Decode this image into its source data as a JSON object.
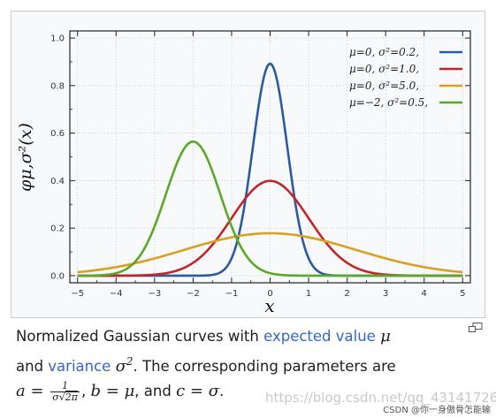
{
  "chart_data": {
    "type": "line",
    "x_axis_label": "x",
    "y_axis_label": "φμ,σ²(x)",
    "xlim": [
      -5,
      5
    ],
    "ylim": [
      0,
      1.0
    ],
    "x_ticks": [
      -5,
      -4,
      -3,
      -2,
      -1,
      0,
      1,
      2,
      3,
      4,
      5
    ],
    "x_tick_labels": [
      "−5",
      "−4",
      "−3",
      "−2",
      "−1",
      "0",
      "1",
      "2",
      "3",
      "4",
      "5"
    ],
    "y_ticks": [
      0,
      0.2,
      0.4,
      0.6,
      0.8,
      1.0
    ],
    "y_tick_labels": [
      "0.0",
      "0.2",
      "0.4",
      "0.6",
      "0.8",
      "1.0"
    ],
    "grid": true,
    "legend_position": "top-right",
    "series": [
      {
        "name": "μ=0,   σ²=0.2,",
        "mu": 0,
        "sigma2": 0.2,
        "color": "#2c5aa0"
      },
      {
        "name": "μ=0,   σ²=1.0,",
        "mu": 0,
        "sigma2": 1.0,
        "color": "#c0262a"
      },
      {
        "name": "μ=0,   σ²=5.0,",
        "mu": 0,
        "sigma2": 5.0,
        "color": "#d9a021"
      },
      {
        "name": "μ=−2,  σ²=0.5,",
        "mu": -2,
        "sigma2": 0.5,
        "color": "#5aa828"
      }
    ]
  },
  "caption": {
    "p1": "Normalized Gaussian curves with ",
    "link_expected_value": "expected value",
    "mu_symbol": "μ",
    "p2": "and ",
    "link_variance": "variance",
    "sigma2_symbol": "σ",
    "sigma2_exp": "2",
    "p3": ". The corresponding parameters are",
    "a_lhs": "a",
    "eq": " = ",
    "frac_num": "1",
    "frac_den_sigma": "σ",
    "frac_den_root": "2π",
    "comma": ",",
    "b_lhs": "b",
    "b_rhs": "μ",
    "and_text": ", and ",
    "c_lhs": "c",
    "c_rhs": "σ",
    "period": "."
  },
  "magnify_icon": "magnify-icon",
  "watermark_text": "https://blog.csdn.net/qq_43141726",
  "csdn_mark_text": "CSDN @你一身傲骨怎能输"
}
